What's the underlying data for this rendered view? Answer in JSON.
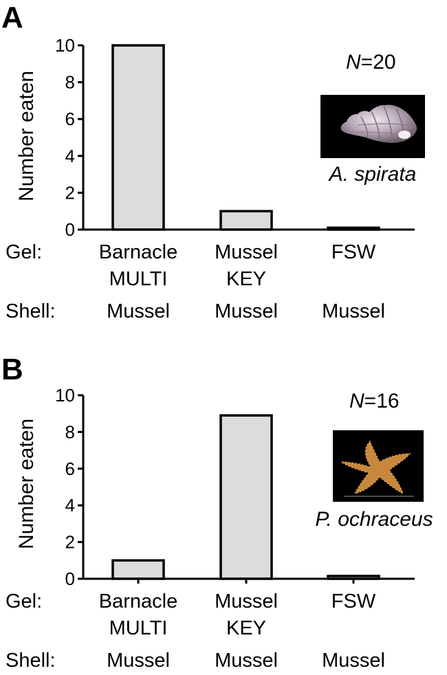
{
  "chart_data": [
    {
      "type": "bar",
      "panel": "A",
      "categories": [
        {
          "gel_line1": "Barnacle",
          "gel_line2": "MULTI",
          "shell": "Mussel"
        },
        {
          "gel_line1": "Mussel",
          "gel_line2": "KEY",
          "shell": "Mussel"
        },
        {
          "gel_line1": "FSW",
          "gel_line2": "",
          "shell": "Mussel"
        }
      ],
      "values": [
        10,
        1,
        0.1
      ],
      "ylabel": "Number eaten",
      "ylim": [
        0,
        10
      ],
      "yticks": [
        "0",
        "2",
        "4",
        "6",
        "8",
        "10"
      ],
      "row_labels": {
        "gel": "Gel:",
        "shell": "Shell:"
      },
      "n_symbol": "N",
      "n_value": "=20",
      "species": "A. spirata",
      "inset_image": "whelk-shell-photo"
    },
    {
      "type": "bar",
      "panel": "B",
      "categories": [
        {
          "gel_line1": "Barnacle",
          "gel_line2": "MULTI",
          "shell": "Mussel"
        },
        {
          "gel_line1": "Mussel",
          "gel_line2": "KEY",
          "shell": "Mussel"
        },
        {
          "gel_line1": "FSW",
          "gel_line2": "",
          "shell": "Mussel"
        }
      ],
      "values": [
        1,
        8.9,
        0.15
      ],
      "ylabel": "Number eaten",
      "ylim": [
        0,
        10
      ],
      "yticks": [
        "0",
        "2",
        "4",
        "6",
        "8",
        "10"
      ],
      "row_labels": {
        "gel": "Gel:",
        "shell": "Shell:"
      },
      "n_symbol": "N",
      "n_value": "=16",
      "species": "P. ochraceus",
      "inset_image": "sea-star-photo"
    }
  ],
  "colors": {
    "bar_fill": "#dcdcdc",
    "photo_bg": "#000000",
    "shell": "#b9a9b8",
    "star": "#c8883c"
  }
}
